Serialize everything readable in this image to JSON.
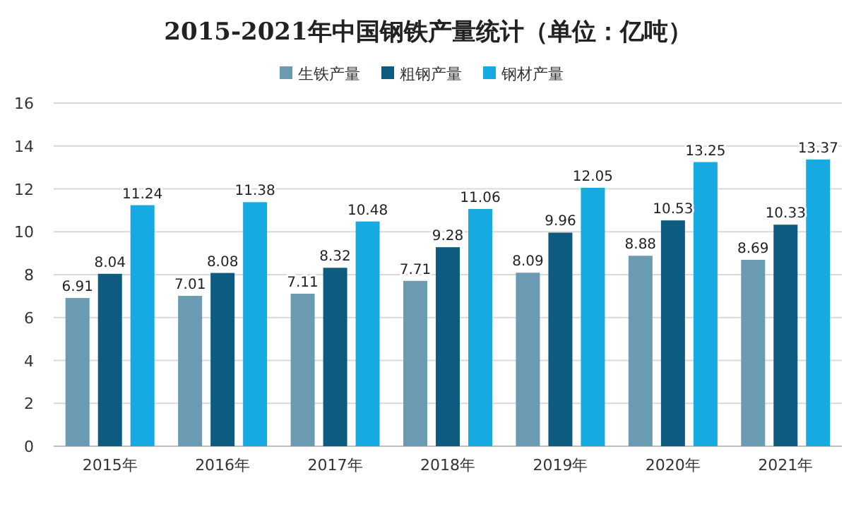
{
  "chart_data": {
    "type": "bar",
    "title": "2015-2021年中国钢铁产量统计（单位：亿吨）",
    "categories": [
      "2015年",
      "2016年",
      "2017年",
      "2018年",
      "2019年",
      "2020年",
      "2021年"
    ],
    "series": [
      {
        "name": "生铁产量",
        "color": "#6a9bb2",
        "values": [
          6.91,
          7.01,
          7.11,
          7.71,
          8.09,
          8.88,
          8.69
        ]
      },
      {
        "name": "粗钢产量",
        "color": "#0d5b7f",
        "values": [
          8.04,
          8.08,
          8.32,
          9.28,
          9.96,
          10.53,
          10.33
        ]
      },
      {
        "name": "钢材产量",
        "color": "#17a9e1",
        "values": [
          11.24,
          11.38,
          10.48,
          11.06,
          12.05,
          13.25,
          13.37
        ]
      }
    ],
    "ylim": [
      0,
      16
    ],
    "yticks": [
      0,
      2,
      4,
      6,
      8,
      10,
      12,
      14,
      16
    ],
    "grid": "y",
    "legend": "top",
    "data_labels": true
  }
}
